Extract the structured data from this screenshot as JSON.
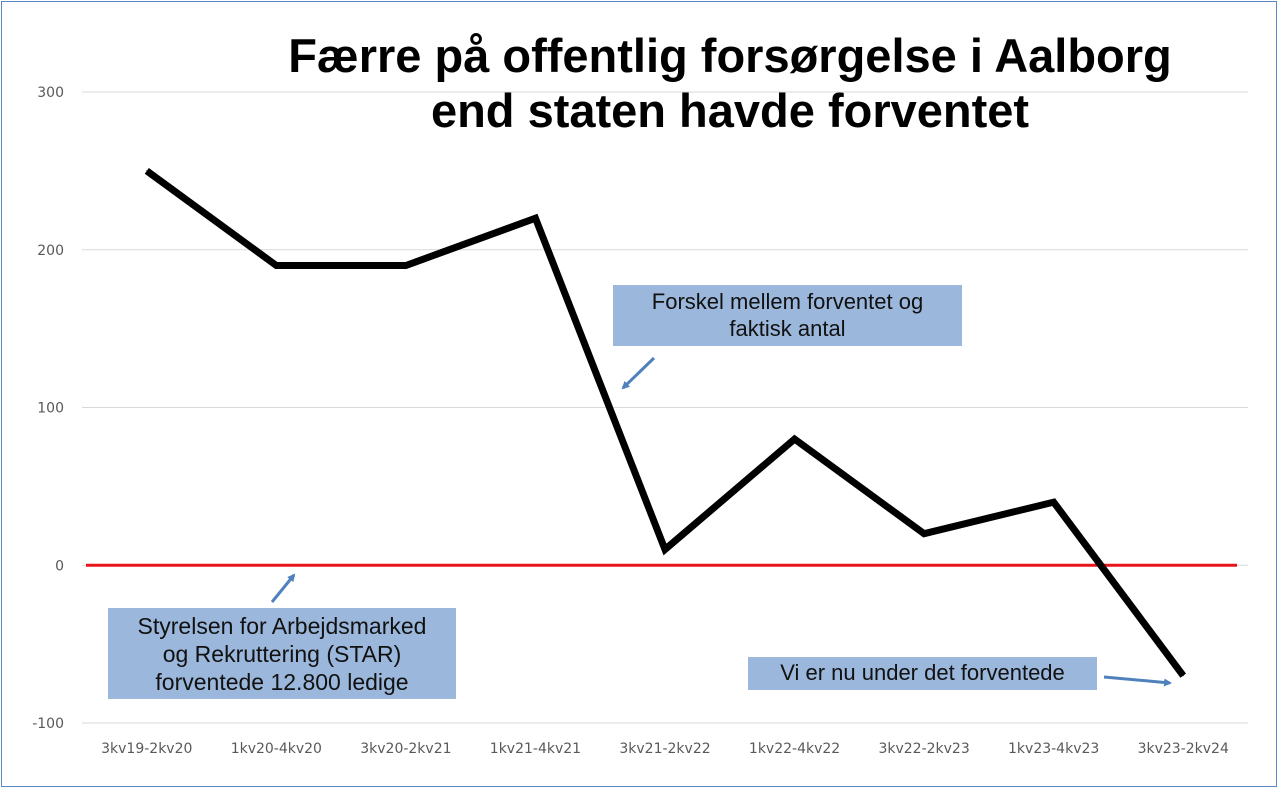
{
  "chart_data": {
    "type": "line",
    "title": "Færre på offentlig forsørgelse i Aalborg end staten havde forventet",
    "title_lines": [
      "Færre på offentlig forsørgelse i Aalborg",
      "end staten havde forventet"
    ],
    "xlabel": "",
    "ylabel": "",
    "categories": [
      "3kv19-2kv20",
      "1kv20-4kv20",
      "3kv20-2kv21",
      "1kv21-4kv21",
      "3kv21-2kv22",
      "1kv22-4kv22",
      "3kv22-2kv23",
      "1kv23-4kv23",
      "3kv23-2kv24"
    ],
    "series": [
      {
        "values": [
          250,
          190,
          190,
          220,
          10,
          80,
          20,
          40,
          -70
        ],
        "color": "#000000"
      }
    ],
    "reference_line": {
      "value": 0,
      "color": "#e8141c"
    },
    "ylim": [
      -100,
      300
    ],
    "yticks": [
      300,
      200,
      100,
      0,
      -100
    ],
    "grid": true,
    "legend": "none",
    "annotations": [
      {
        "text_lines": [
          "Forskel mellem forventet og",
          "faktisk antal"
        ],
        "color": "#9bb7dc"
      },
      {
        "text_lines": [
          "Styrelsen for Arbejdsmarked",
          "og Rekruttering (STAR)",
          "forventede 12.800 ledige"
        ],
        "color": "#9bb7dc"
      },
      {
        "text_lines": [
          "Vi er nu under det forventede"
        ],
        "color": "#9bb7dc"
      }
    ],
    "arrow_color": "#4f81bd"
  }
}
